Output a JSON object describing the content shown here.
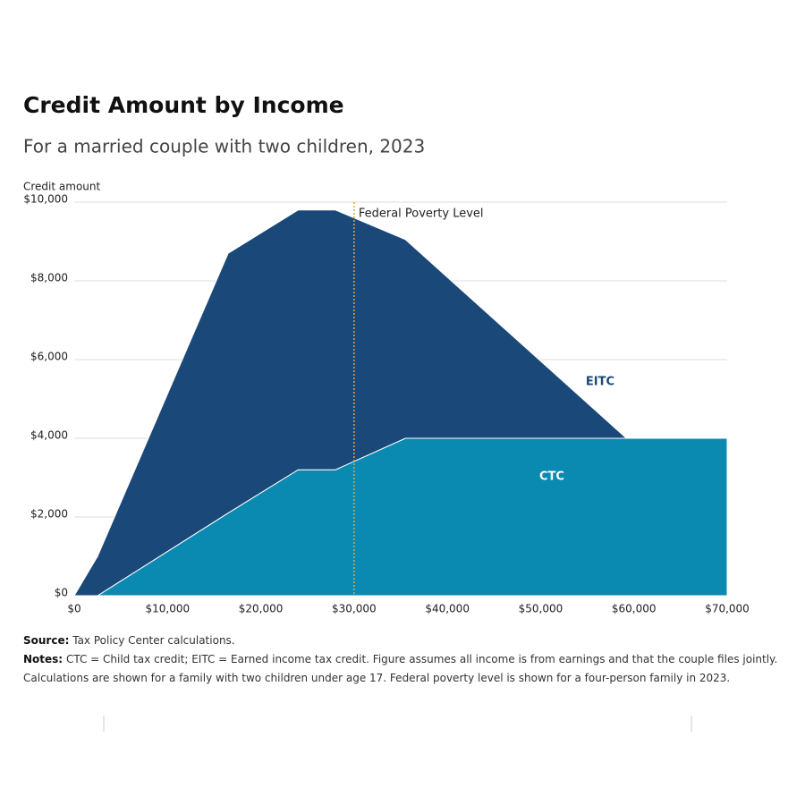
{
  "chart_data": {
    "type": "stacked-area",
    "title": "Credit Amount by Income",
    "subtitle": "For a married couple with two children, 2023",
    "y_label": "Credit amount",
    "x": [
      0,
      2500,
      16500,
      24000,
      28000,
      35500,
      59200,
      70000
    ],
    "series": [
      {
        "name": "CTC",
        "color": "#0a8ab0",
        "values": [
          0,
          0,
          2100,
          3200,
          3200,
          4000,
          4000,
          4000
        ]
      },
      {
        "name": "EITC",
        "color": "#1a4878",
        "values": [
          0,
          1000,
          6600,
          6600,
          6600,
          5050,
          0,
          0
        ]
      }
    ],
    "xlim": [
      0,
      70000
    ],
    "xticks": [
      {
        "value": 0,
        "label": "$0"
      },
      {
        "value": 10000,
        "label": "$10,000"
      },
      {
        "value": 20000,
        "label": "$20,000"
      },
      {
        "value": 30000,
        "label": "$30,000"
      },
      {
        "value": 40000,
        "label": "$40,000"
      },
      {
        "value": 50000,
        "label": "$50,000"
      },
      {
        "value": 60000,
        "label": "$60,000"
      },
      {
        "value": 70000,
        "label": "$70,000"
      }
    ],
    "ylim": [
      0,
      10000
    ],
    "yticks": [
      {
        "value": 0,
        "label": "$0"
      },
      {
        "value": 2000,
        "label": "$2,000"
      },
      {
        "value": 4000,
        "label": "$4,000"
      },
      {
        "value": 6000,
        "label": "$6,000"
      },
      {
        "value": 8000,
        "label": "$8,000"
      },
      {
        "value": 10000,
        "label": "$10,000"
      }
    ],
    "grid": true,
    "annotation": {
      "label": "Federal Poverty Level",
      "x": 30000,
      "color": "#f0a030"
    },
    "source": {
      "label": "Source:",
      "text": "Tax Policy Center calculations."
    },
    "notes": {
      "label": "Notes:",
      "text": "CTC = Child tax credit; EITC = Earned income tax credit. Figure assumes all income is from earnings and that the couple files jointly. Calculations are shown for a family with two children under age 17. Federal poverty level is shown for a four-person family in 2023."
    }
  }
}
